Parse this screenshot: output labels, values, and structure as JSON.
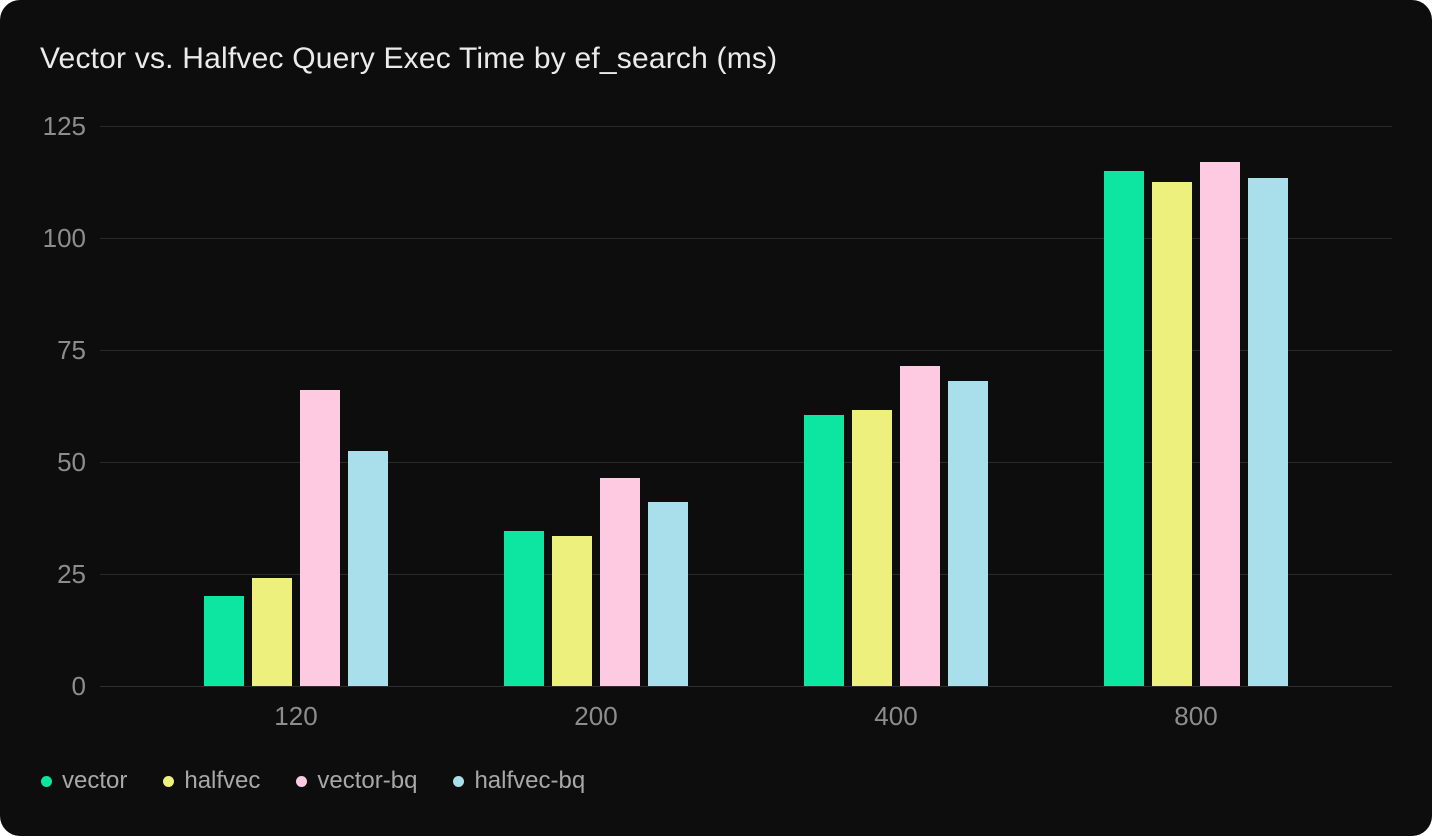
{
  "page": {
    "background_color": "#ffffff",
    "card_background_color": "#0d0d0d",
    "gridline_color": "#2a2a2a",
    "tick_label_color": "#8d8d8d",
    "legend_label_color": "#a8a8a8",
    "title_color": "#ebebeb"
  },
  "chart_data": {
    "type": "bar",
    "title": "Vector vs. Halfvec Query Exec Time by ef_search (ms)",
    "xlabel": "",
    "ylabel": "",
    "categories": [
      "120",
      "200",
      "400",
      "800"
    ],
    "series": [
      {
        "name": "vector",
        "color": "#0ce6a0",
        "values": [
          20,
          34.5,
          60.5,
          115
        ]
      },
      {
        "name": "halfvec",
        "color": "#eef07d",
        "values": [
          24,
          33.5,
          61.5,
          112.5
        ]
      },
      {
        "name": "vector-bq",
        "color": "#fecae2",
        "values": [
          66,
          46.5,
          71.5,
          117
        ]
      },
      {
        "name": "halfvec-bq",
        "color": "#a9dfea",
        "values": [
          52.5,
          41,
          68,
          113.5
        ]
      }
    ],
    "ylim": [
      0,
      125
    ],
    "yticks": [
      0,
      25,
      50,
      75,
      100,
      125
    ],
    "grid": true,
    "legend_position": "bottom-left"
  }
}
